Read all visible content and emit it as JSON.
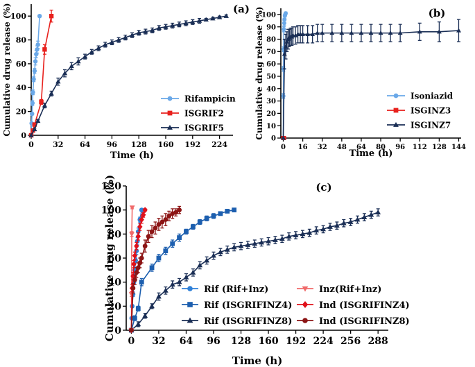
{
  "chart_data": [
    {
      "type": "line",
      "panel_label": "(a)",
      "xlabel": "Time (h)",
      "ylabel": "Cumulative drug release (%)",
      "xlim": [
        0,
        240
      ],
      "ylim": [
        0,
        110
      ],
      "xticks": [
        0,
        32,
        64,
        96,
        128,
        160,
        192,
        224
      ],
      "yticks": [
        0,
        20,
        40,
        60,
        80,
        100
      ],
      "legend_position": "right-middle",
      "series": [
        {
          "name": "Rifampicin",
          "color": "#6aa8e8",
          "marker": "circle",
          "x": [
            0,
            0.5,
            1,
            1.5,
            2,
            3,
            4,
            5,
            6,
            7,
            8,
            10
          ],
          "y": [
            0,
            10,
            18,
            27,
            36,
            47,
            54,
            62,
            68,
            72,
            76,
            100
          ],
          "err": [
            0,
            1,
            1,
            2,
            2,
            2,
            2,
            3,
            3,
            3,
            3,
            1
          ]
        },
        {
          "name": "ISGRIF2",
          "color": "#e8211d",
          "marker": "square",
          "x": [
            0,
            2,
            4,
            12,
            16,
            24
          ],
          "y": [
            0,
            4,
            9,
            28,
            72,
            100
          ],
          "err": [
            0,
            1,
            1,
            2,
            4,
            5
          ]
        },
        {
          "name": "ISGRIF5",
          "color": "#1a2e55",
          "marker": "triangle",
          "x": [
            0,
            4,
            8,
            16,
            24,
            32,
            40,
            48,
            56,
            64,
            72,
            80,
            88,
            96,
            104,
            112,
            120,
            128,
            136,
            144,
            152,
            160,
            168,
            176,
            184,
            192,
            200,
            208,
            216,
            224,
            232
          ],
          "y": [
            0,
            5,
            12,
            25,
            35,
            45,
            52,
            58,
            62,
            66,
            70,
            73,
            76,
            78,
            80,
            82,
            84,
            86,
            87,
            88,
            90,
            91,
            92,
            93,
            94,
            95,
            96,
            97,
            98,
            99,
            100
          ],
          "err": [
            0,
            1,
            1,
            2,
            2,
            3,
            3,
            3,
            3,
            2,
            2,
            2,
            2,
            2,
            2,
            2,
            2,
            2,
            2,
            2,
            2,
            2,
            2,
            2,
            2,
            2,
            2,
            1,
            1,
            1,
            1
          ]
        }
      ]
    },
    {
      "type": "line",
      "panel_label": "(b)",
      "xlabel": "Time (h)",
      "ylabel": "Cumulative drug release (%)",
      "xlim": [
        -2,
        146
      ],
      "ylim": [
        0,
        105
      ],
      "xticks": [
        0,
        16,
        32,
        48,
        64,
        80,
        96,
        112,
        128,
        144
      ],
      "yticks": [
        0,
        10,
        20,
        30,
        40,
        50,
        60,
        70,
        80,
        90,
        100
      ],
      "legend_position": "right-middle",
      "series": [
        {
          "name": "Isoniazid",
          "color": "#6aa8e8",
          "marker": "circle",
          "x": [
            0,
            0.1,
            0.2,
            0.3,
            0.5,
            0.8,
            1.0,
            1.3,
            1.6,
            2.0
          ],
          "y": [
            0,
            34,
            56,
            72,
            88,
            93,
            96,
            99,
            100,
            101
          ],
          "err": [
            0,
            2,
            2,
            2,
            2,
            2,
            1,
            1,
            1,
            1
          ]
        },
        {
          "name": "ISGINZ3",
          "color": "#e8211d",
          "marker": "square",
          "x": [
            0,
            0.1,
            0.3,
            0.6
          ],
          "y": [
            0,
            0,
            0,
            0
          ],
          "err": [
            0,
            0,
            0,
            0
          ]
        },
        {
          "name": "ISGINZ7",
          "color": "#1a2e55",
          "marker": "triangle",
          "x": [
            0,
            1,
            2,
            3,
            4,
            5,
            6,
            7,
            8,
            10,
            12,
            14,
            16,
            20,
            24,
            28,
            32,
            40,
            48,
            56,
            64,
            72,
            80,
            88,
            96,
            112,
            128,
            144
          ],
          "y": [
            0,
            68,
            74,
            78,
            80,
            81,
            82,
            82,
            83,
            83,
            84,
            84,
            84,
            84,
            84,
            85,
            85,
            85,
            85,
            85,
            85,
            85,
            85,
            85,
            85,
            86,
            86,
            87
          ],
          "err": [
            0,
            12,
            10,
            8,
            8,
            7,
            7,
            7,
            7,
            7,
            7,
            7,
            7,
            7,
            7,
            7,
            7,
            7,
            7,
            7,
            7,
            7,
            7,
            7,
            7,
            7,
            8,
            9
          ]
        }
      ]
    },
    {
      "type": "line",
      "panel_label": "(c)",
      "xlabel": "Time (h)",
      "ylabel": "Cumulative drug release (%)",
      "xlim": [
        -6,
        300
      ],
      "ylim": [
        0,
        120
      ],
      "xticks": [
        0,
        32,
        64,
        96,
        128,
        160,
        192,
        224,
        256,
        288
      ],
      "yticks": [
        0,
        20,
        40,
        60,
        80,
        100,
        120
      ],
      "legend_position": "bottom-right",
      "series": [
        {
          "name": "Rif (Rif+Inz)",
          "color": "#2f80d8",
          "marker": "circle",
          "x": [
            0,
            0.5,
            1,
            2,
            3,
            4,
            5,
            6,
            7,
            8,
            10,
            12
          ],
          "y": [
            0,
            10,
            20,
            30,
            40,
            50,
            58,
            66,
            74,
            82,
            92,
            100
          ],
          "err": [
            0,
            1,
            1,
            2,
            2,
            2,
            2,
            3,
            3,
            3,
            2,
            1
          ]
        },
        {
          "name": "Rif (ISGRIFINZ4)",
          "color": "#1d5faf",
          "marker": "square",
          "x": [
            0,
            4,
            8,
            12,
            24,
            32,
            40,
            48,
            56,
            64,
            72,
            80,
            88,
            96,
            104,
            112,
            120
          ],
          "y": [
            0,
            10,
            18,
            40,
            52,
            60,
            66,
            72,
            77,
            82,
            86,
            90,
            93,
            95,
            97,
            99,
            100
          ],
          "err": [
            0,
            2,
            2,
            3,
            3,
            3,
            3,
            3,
            3,
            2,
            2,
            2,
            2,
            2,
            1,
            1,
            1
          ]
        },
        {
          "name": "Rif (ISGRIFINZ8)",
          "color": "#1a2e55",
          "marker": "triangle",
          "x": [
            0,
            8,
            16,
            24,
            32,
            40,
            48,
            56,
            64,
            72,
            80,
            88,
            96,
            104,
            112,
            120,
            128,
            136,
            144,
            152,
            160,
            168,
            176,
            184,
            192,
            200,
            208,
            216,
            224,
            232,
            240,
            248,
            256,
            264,
            272,
            280,
            288
          ],
          "y": [
            0,
            5,
            12,
            20,
            28,
            33,
            38,
            40,
            44,
            48,
            54,
            58,
            62,
            65,
            67,
            69,
            70,
            71,
            72,
            73,
            74,
            75,
            76,
            78,
            79,
            80,
            81,
            83,
            84,
            86,
            87,
            89,
            90,
            92,
            94,
            96,
            98
          ],
          "err": [
            0,
            2,
            2,
            2,
            3,
            3,
            3,
            3,
            3,
            3,
            3,
            3,
            3,
            3,
            3,
            3,
            3,
            3,
            3,
            3,
            3,
            3,
            3,
            3,
            3,
            3,
            3,
            3,
            3,
            3,
            3,
            3,
            3,
            3,
            3,
            3,
            3
          ]
        },
        {
          "name": "Inz(Rif+Inz)",
          "color": "#f06a6a",
          "marker": "triangle-down",
          "x": [
            0,
            0.2,
            0.5,
            1
          ],
          "y": [
            0,
            30,
            80,
            102
          ],
          "err": [
            0,
            2,
            2,
            1
          ]
        },
        {
          "name": "Ind (ISGRIFINZ4)",
          "color": "#e0101a",
          "marker": "diamond",
          "x": [
            0,
            1,
            2,
            3,
            4,
            6,
            8,
            10,
            12,
            14,
            16
          ],
          "y": [
            0,
            35,
            45,
            55,
            62,
            70,
            78,
            86,
            92,
            96,
            100
          ],
          "err": [
            0,
            3,
            3,
            3,
            3,
            3,
            3,
            3,
            3,
            2,
            1
          ]
        },
        {
          "name": "Ind (ISGRIFINZ8)",
          "color": "#8c1515",
          "marker": "circle",
          "x": [
            0,
            2,
            4,
            6,
            8,
            10,
            12,
            16,
            20,
            24,
            28,
            32,
            36,
            40,
            44,
            48,
            52,
            56
          ],
          "y": [
            0,
            35,
            42,
            48,
            52,
            56,
            60,
            70,
            78,
            82,
            85,
            88,
            90,
            92,
            95,
            97,
            98,
            100
          ],
          "err": [
            0,
            4,
            4,
            4,
            4,
            4,
            4,
            5,
            5,
            5,
            5,
            5,
            5,
            5,
            4,
            4,
            3,
            3
          ]
        }
      ]
    }
  ]
}
